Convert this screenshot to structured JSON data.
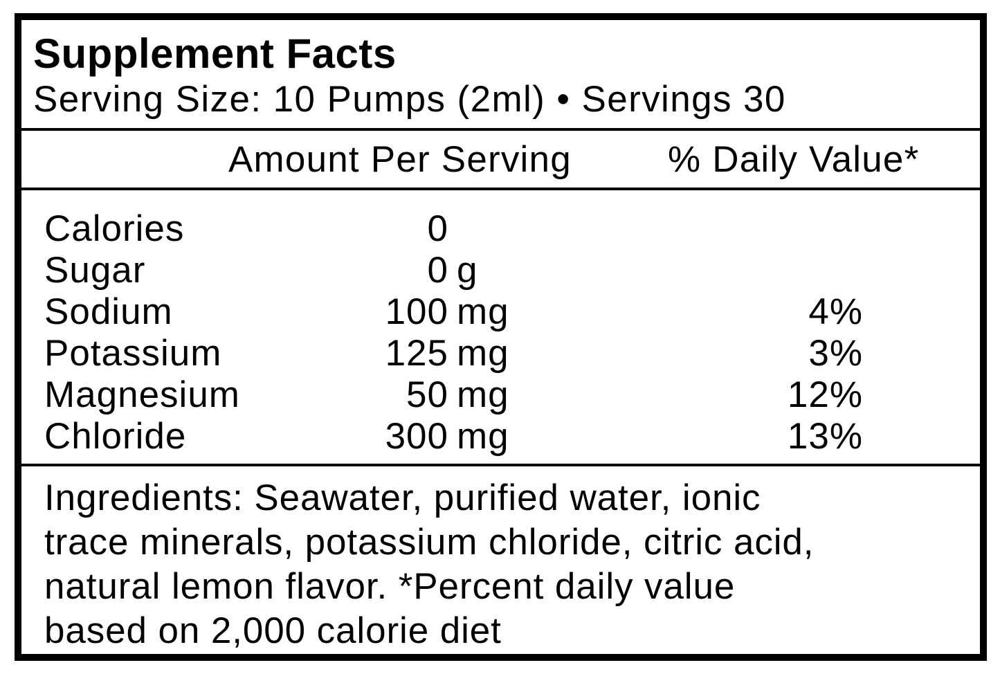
{
  "title": "Supplement Facts",
  "serving_line": "Serving Size: 10 Pumps (2ml) • Servings 30",
  "header": {
    "amount": "Amount Per Serving",
    "daily_value": "% Daily Value*"
  },
  "rows": [
    {
      "name": "Calories",
      "amount": "0",
      "unit": "",
      "dv": ""
    },
    {
      "name": "Sugar",
      "amount": "0",
      "unit": "g",
      "dv": ""
    },
    {
      "name": "Sodium",
      "amount": "100",
      "unit": "mg",
      "dv": "4%"
    },
    {
      "name": "Potassium",
      "amount": "125",
      "unit": "mg",
      "dv": "3%"
    },
    {
      "name": "Magnesium",
      "amount": "50",
      "unit": "mg",
      "dv": "12%"
    },
    {
      "name": "Chloride",
      "amount": "300",
      "unit": "mg",
      "dv": "13%"
    }
  ],
  "ingredients_lines": [
    "Ingredients: Seawater, purified water, ionic",
    "trace minerals, potassium chloride, citric acid,",
    "natural lemon flavor. *Percent daily value",
    "based on 2,000 calorie diet"
  ]
}
